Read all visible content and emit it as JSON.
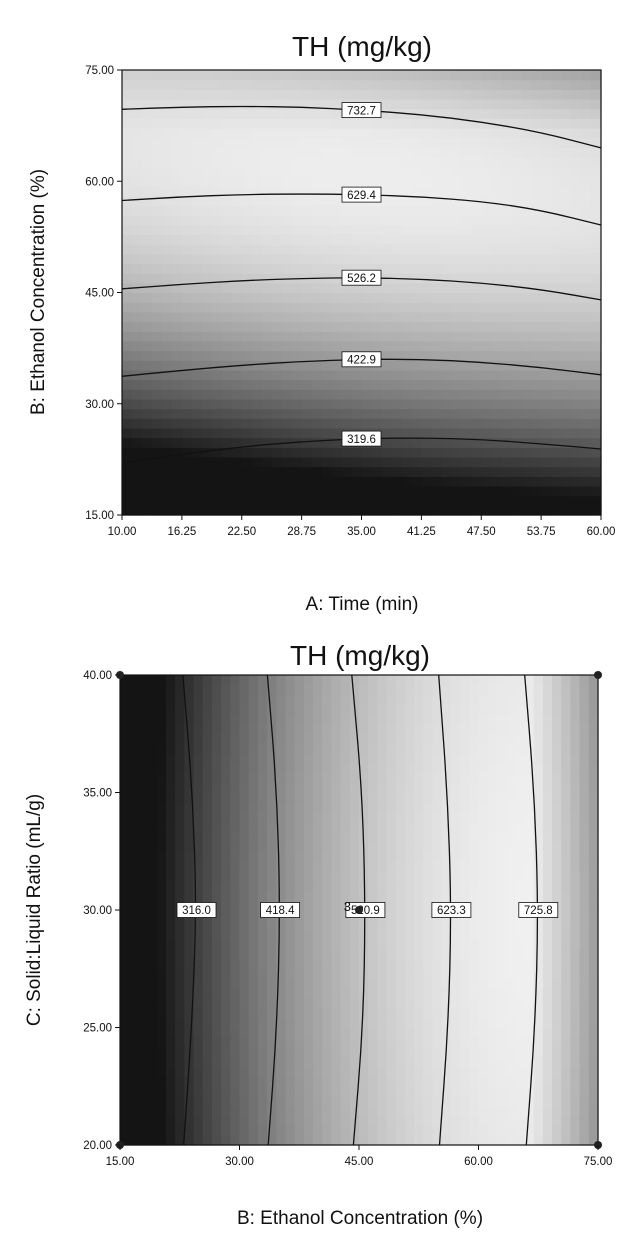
{
  "chart_data": [
    {
      "type": "contour",
      "title": "TH (mg/kg)",
      "xlabel": "A: Time (min)",
      "ylabel": "B: Ethanol Concentration (%)",
      "xlim": [
        10,
        60
      ],
      "ylim": [
        15,
        75
      ],
      "x_ticks": [
        "10.00",
        "16.25",
        "22.50",
        "28.75",
        "35.00",
        "41.25",
        "47.50",
        "53.75",
        "60.00"
      ],
      "y_ticks": [
        "15.00",
        "30.00",
        "45.00",
        "60.00",
        "75.00"
      ],
      "colormap": "grayscale (dark = low, light = high)",
      "contours": [
        {
          "level": "319.6",
          "points": [
            [
              10,
              22.0
            ],
            [
              16.25,
              23.2
            ],
            [
              22.5,
              24.2
            ],
            [
              28.75,
              24.9
            ],
            [
              35,
              25.3
            ],
            [
              41.25,
              25.4
            ],
            [
              47.5,
              25.2
            ],
            [
              53.75,
              24.6
            ],
            [
              60,
              23.9
            ]
          ]
        },
        {
          "level": "422.9",
          "points": [
            [
              10,
              33.7
            ],
            [
              16.25,
              34.5
            ],
            [
              22.5,
              35.2
            ],
            [
              28.75,
              35.7
            ],
            [
              35,
              36.0
            ],
            [
              41.25,
              36.0
            ],
            [
              47.5,
              35.6
            ],
            [
              53.75,
              34.9
            ],
            [
              60,
              33.9
            ]
          ]
        },
        {
          "level": "526.2",
          "points": [
            [
              10,
              45.5
            ],
            [
              16.25,
              46.1
            ],
            [
              22.5,
              46.6
            ],
            [
              28.75,
              46.9
            ],
            [
              35,
              47.0
            ],
            [
              41.25,
              46.8
            ],
            [
              47.5,
              46.3
            ],
            [
              53.75,
              45.4
            ],
            [
              60,
              44.0
            ]
          ]
        },
        {
          "level": "629.4",
          "points": [
            [
              10,
              57.4
            ],
            [
              16.25,
              57.9
            ],
            [
              22.5,
              58.2
            ],
            [
              28.75,
              58.3
            ],
            [
              35,
              58.2
            ],
            [
              41.25,
              57.9
            ],
            [
              47.5,
              57.3
            ],
            [
              53.75,
              56.1
            ],
            [
              60,
              54.1
            ]
          ]
        },
        {
          "level": "732.7",
          "points": [
            [
              10,
              69.7
            ],
            [
              16.25,
              70.0
            ],
            [
              22.5,
              70.1
            ],
            [
              28.75,
              70.0
            ],
            [
              35,
              69.6
            ],
            [
              41.25,
              69.0
            ],
            [
              47.5,
              68.0
            ],
            [
              53.75,
              66.6
            ],
            [
              60,
              64.5
            ]
          ]
        }
      ]
    },
    {
      "type": "contour",
      "title": "TH (mg/kg)",
      "xlabel": "B: Ethanol Concentration (%)",
      "ylabel": "C: Solid:Liquid Ratio (mL/g)",
      "xlim": [
        15,
        75
      ],
      "ylim": [
        20,
        40
      ],
      "x_ticks": [
        "15.00",
        "30.00",
        "45.00",
        "60.00",
        "75.00"
      ],
      "y_ticks": [
        "20.00",
        "25.00",
        "30.00",
        "35.00",
        "40.00"
      ],
      "colormap": "grayscale (dark = low, light = high)",
      "contours": [
        {
          "level": "316.0",
          "points": [
            [
              23.0,
              20
            ],
            [
              24.0,
              25
            ],
            [
              24.6,
              30
            ],
            [
              24.1,
              35
            ],
            [
              22.9,
              40
            ]
          ]
        },
        {
          "level": "418.4",
          "points": [
            [
              33.6,
              20
            ],
            [
              34.7,
              25
            ],
            [
              35.1,
              30
            ],
            [
              34.7,
              35
            ],
            [
              33.5,
              40
            ]
          ]
        },
        {
          "level": "520.9",
          "points": [
            [
              44.3,
              20
            ],
            [
              45.5,
              25
            ],
            [
              45.8,
              30
            ],
            [
              45.4,
              35
            ],
            [
              44.1,
              40
            ]
          ]
        },
        {
          "level": "623.3",
          "points": [
            [
              55.1,
              20
            ],
            [
              56.2,
              25
            ],
            [
              56.6,
              30
            ],
            [
              56.1,
              35
            ],
            [
              55.0,
              40
            ]
          ]
        },
        {
          "level": "725.8",
          "points": [
            [
              66.0,
              20
            ],
            [
              67.1,
              25
            ],
            [
              67.5,
              30
            ],
            [
              67.0,
              35
            ],
            [
              65.8,
              40
            ]
          ]
        }
      ],
      "design_points": [
        {
          "x": 45,
          "y": 30,
          "label": "3"
        },
        {
          "x": 15,
          "y": 20,
          "label": ""
        },
        {
          "x": 75,
          "y": 20,
          "label": ""
        },
        {
          "x": 15,
          "y": 40,
          "label": ""
        },
        {
          "x": 75,
          "y": 40,
          "label": ""
        }
      ]
    }
  ]
}
